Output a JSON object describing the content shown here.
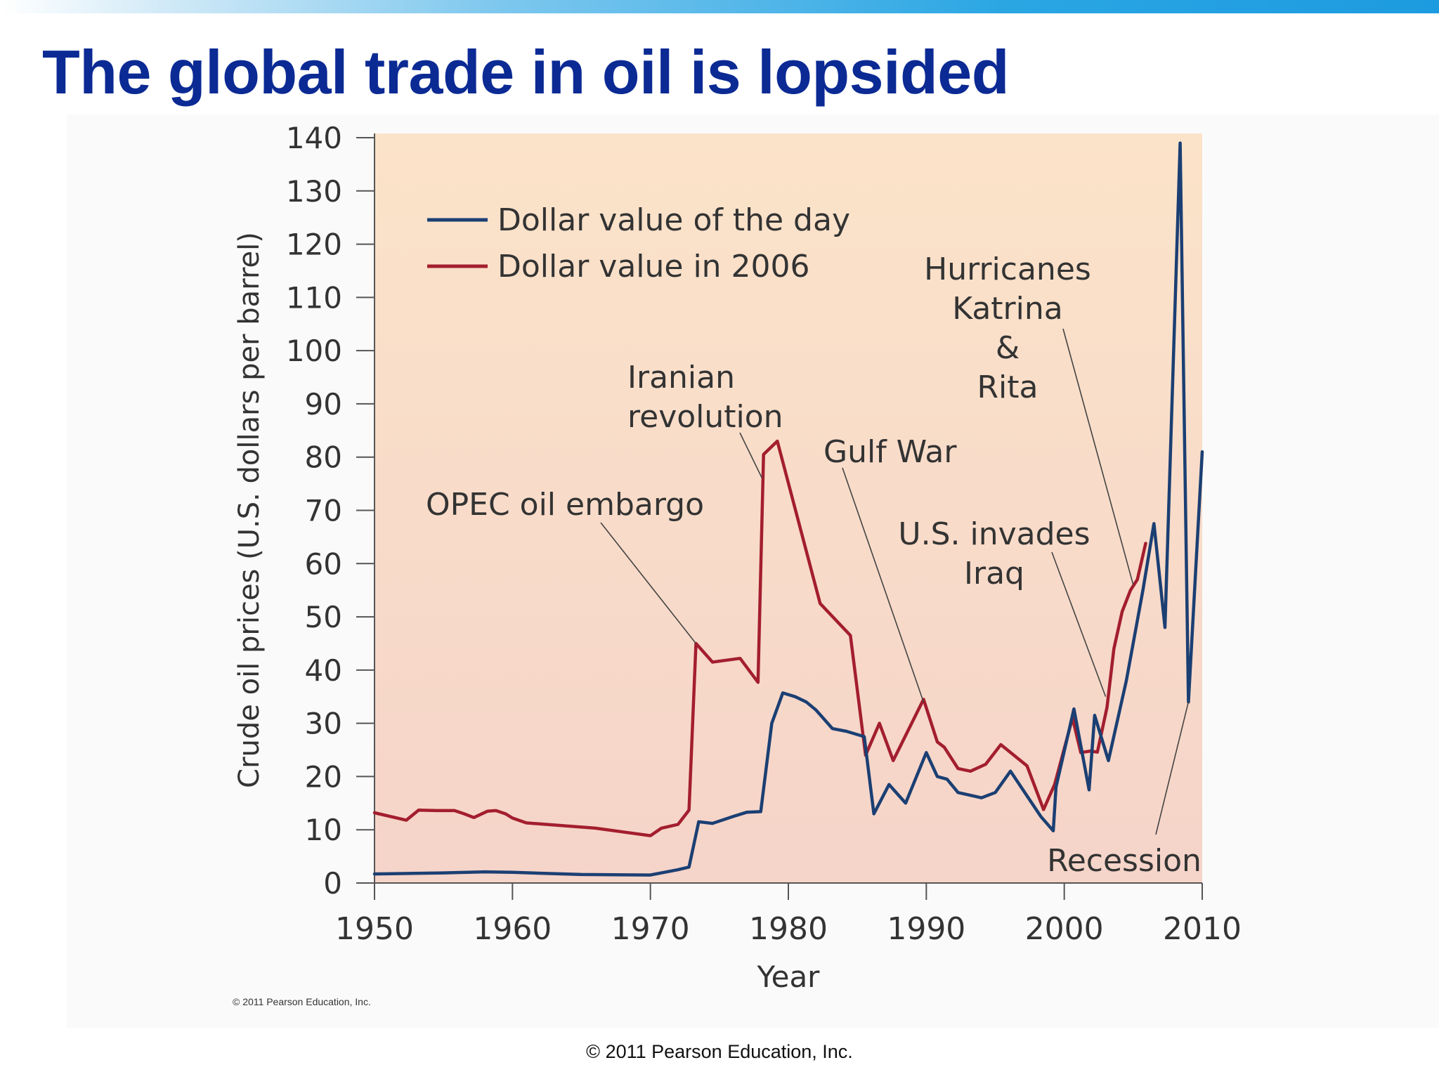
{
  "slide": {
    "title": "The global trade in oil is lopsided",
    "footer_credit": "© 2011 Pearson Education, Inc."
  },
  "figure": {
    "credit": "© 2011 Pearson Education, Inc."
  },
  "chart_data": {
    "type": "line",
    "title": "",
    "xlabel": "Year",
    "ylabel": "Crude oil prices (U.S. dollars per barrel)",
    "xlim": [
      1950,
      2010
    ],
    "ylim": [
      0,
      140
    ],
    "x_ticks": [
      1950,
      1960,
      1970,
      1980,
      1990,
      2000,
      2010
    ],
    "y_ticks": [
      0,
      10,
      20,
      30,
      40,
      50,
      60,
      70,
      80,
      90,
      100,
      110,
      120,
      130,
      140
    ],
    "grid": false,
    "legend_position": "top-left",
    "series": [
      {
        "name": "Dollar value of the day",
        "color": "#1b3f73",
        "points": [
          [
            1950,
            1.7
          ],
          [
            1955,
            1.9
          ],
          [
            1958,
            2.1
          ],
          [
            1960,
            2.0
          ],
          [
            1965,
            1.6
          ],
          [
            1970,
            1.5
          ],
          [
            1972,
            2.5
          ],
          [
            1972.8,
            3.0
          ],
          [
            1973.5,
            11.5
          ],
          [
            1974.5,
            11.2
          ],
          [
            1976,
            12.5
          ],
          [
            1977,
            13.3
          ],
          [
            1978,
            13.4
          ],
          [
            1978.8,
            30.0
          ],
          [
            1979.6,
            35.7
          ],
          [
            1980.5,
            35.0
          ],
          [
            1981.3,
            34.0
          ],
          [
            1982,
            32.5
          ],
          [
            1983.2,
            29.0
          ],
          [
            1984.2,
            28.5
          ],
          [
            1985.5,
            27.5
          ],
          [
            1986.2,
            13.0
          ],
          [
            1987.3,
            18.5
          ],
          [
            1988.5,
            15.0
          ],
          [
            1990,
            24.5
          ],
          [
            1990.8,
            20.0
          ],
          [
            1991.5,
            19.5
          ],
          [
            1992.3,
            17.0
          ],
          [
            1994,
            16.0
          ],
          [
            1995,
            17.0
          ],
          [
            1996.1,
            21.0
          ],
          [
            1998.3,
            12.5
          ],
          [
            1999.2,
            9.8
          ],
          [
            1999.4,
            18.0
          ],
          [
            2000.7,
            32.7
          ],
          [
            2001.8,
            17.5
          ],
          [
            2002.2,
            31.5
          ],
          [
            2003.2,
            23.0
          ],
          [
            2004.5,
            38.0
          ],
          [
            2005.7,
            55.0
          ],
          [
            2006.5,
            67.5
          ],
          [
            2007.3,
            48.0
          ],
          [
            2008.4,
            139.0
          ],
          [
            2009.0,
            34.0
          ],
          [
            2010.0,
            81.0
          ]
        ]
      },
      {
        "name": "Dollar value in 2006",
        "color": "#a31e2e",
        "points": [
          [
            1950,
            13.2
          ],
          [
            1952.3,
            11.8
          ],
          [
            1953.2,
            13.7
          ],
          [
            1954.5,
            13.6
          ],
          [
            1955.8,
            13.6
          ],
          [
            1956.5,
            13.0
          ],
          [
            1957.2,
            12.3
          ],
          [
            1958.2,
            13.5
          ],
          [
            1958.8,
            13.6
          ],
          [
            1959.5,
            13.0
          ],
          [
            1960,
            12.2
          ],
          [
            1961,
            11.3
          ],
          [
            1962,
            11.1
          ],
          [
            1966,
            10.3
          ],
          [
            1970,
            8.9
          ],
          [
            1970.8,
            10.3
          ],
          [
            1972,
            11.0
          ],
          [
            1972.8,
            13.7
          ],
          [
            1973.3,
            45.0
          ],
          [
            1974.5,
            41.5
          ],
          [
            1976.5,
            42.2
          ],
          [
            1977.8,
            37.7
          ],
          [
            1978.2,
            80.5
          ],
          [
            1978.8,
            82.0
          ],
          [
            1979.2,
            83.0
          ],
          [
            1982.3,
            52.5
          ],
          [
            1984.5,
            46.5
          ],
          [
            1985.6,
            24.0
          ],
          [
            1986.6,
            30.0
          ],
          [
            1987.6,
            23.0
          ],
          [
            1989.8,
            34.5
          ],
          [
            1990.8,
            26.5
          ],
          [
            1991.3,
            25.5
          ],
          [
            1992.3,
            21.5
          ],
          [
            1993.2,
            21.0
          ],
          [
            1994.3,
            22.3
          ],
          [
            1995.4,
            26.0
          ],
          [
            1996.2,
            24.3
          ],
          [
            1997.3,
            22.0
          ],
          [
            1998.5,
            13.8
          ],
          [
            1999.3,
            18.5
          ],
          [
            2000.6,
            31.0
          ],
          [
            2001.2,
            24.5
          ],
          [
            2001.9,
            24.8
          ],
          [
            2002.4,
            24.6
          ],
          [
            2003.1,
            33.0
          ],
          [
            2003.6,
            44.0
          ],
          [
            2004.2,
            51.0
          ],
          [
            2004.8,
            55.0
          ],
          [
            2005.3,
            57.0
          ],
          [
            2005.9,
            63.8
          ]
        ]
      }
    ],
    "annotations": [
      {
        "id": "opec",
        "lines": [
          "OPEC oil embargo"
        ],
        "point": [
          1973.3,
          45.0
        ]
      },
      {
        "id": "iran",
        "lines": [
          "Iranian",
          "revolution"
        ],
        "point": [
          1978.1,
          76.0
        ]
      },
      {
        "id": "gulf",
        "lines": [
          "Gulf War"
        ],
        "point": [
          1989.8,
          34.0
        ]
      },
      {
        "id": "katrina",
        "lines": [
          "Hurricanes",
          "Katrina",
          "&",
          "Rita"
        ],
        "point": [
          2005.0,
          56.0
        ]
      },
      {
        "id": "iraq",
        "lines": [
          "U.S. invades",
          "Iraq"
        ],
        "point": [
          2003.0,
          35.0
        ]
      },
      {
        "id": "recession",
        "lines": [
          "Recession"
        ],
        "point": [
          2009.0,
          34.0
        ]
      }
    ]
  }
}
